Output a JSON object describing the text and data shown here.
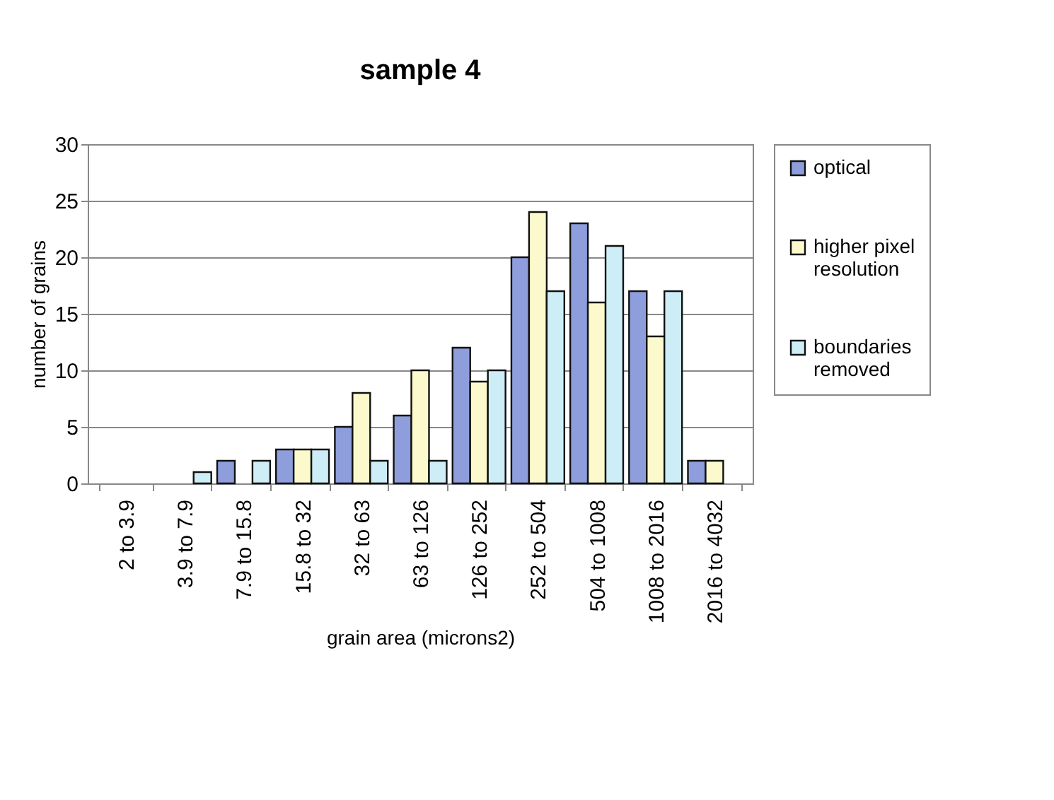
{
  "chart_data": {
    "type": "bar",
    "title": "sample 4",
    "xlabel": "grain area (microns2)",
    "ylabel": "number of grains",
    "categories": [
      "2 to 3.9",
      "3.9 to 7.9",
      "7.9 to 15.8",
      "15.8 to 32",
      "32 to 63",
      "63 to 126",
      "126 to 252",
      "252 to 504",
      "504 to 1008",
      "1008 to 2016",
      "2016 to 4032"
    ],
    "series": [
      {
        "name": "optical",
        "color": "#8e9edc",
        "values": [
          0,
          0,
          2,
          3,
          5,
          6,
          12,
          20,
          23,
          17,
          2
        ]
      },
      {
        "name": "higher pixel resolution",
        "color": "#fcfacc",
        "values": [
          0,
          0,
          0,
          3,
          8,
          10,
          9,
          24,
          16,
          13,
          2
        ]
      },
      {
        "name": "boundaries removed",
        "color": "#cdeef6",
        "values": [
          0,
          1,
          2,
          3,
          2,
          2,
          10,
          17,
          21,
          17,
          null
        ]
      }
    ],
    "ylim": [
      0,
      30
    ],
    "yticks": [
      0,
      5,
      10,
      15,
      20,
      25,
      30
    ],
    "grid": "y",
    "legend": "right"
  }
}
